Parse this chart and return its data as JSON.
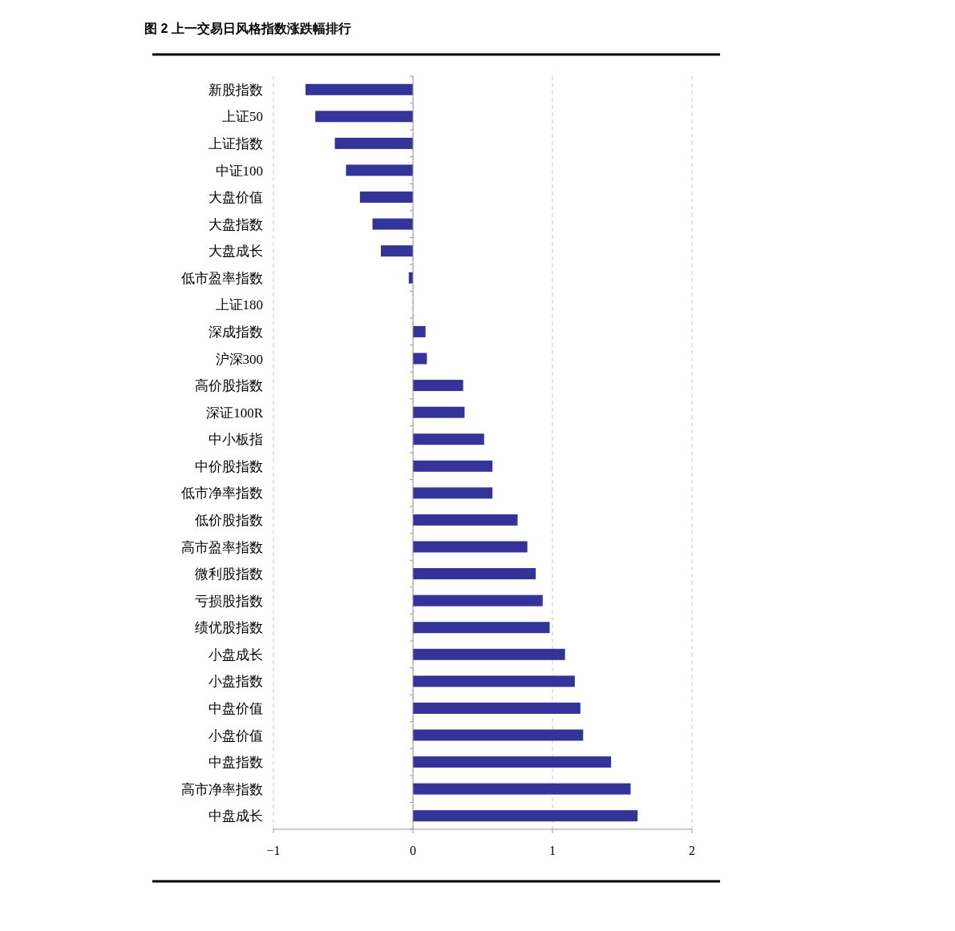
{
  "chart_data": {
    "type": "bar",
    "orientation": "horizontal",
    "title": "图 2 上一交易日风格指数涨跌幅排行",
    "categories": [
      "新股指数",
      "上证50",
      "上证指数",
      "中证100",
      "大盘价值",
      "大盘指数",
      "大盘成长",
      "低市盈率指数",
      "上证180",
      "深成指数",
      "沪深300",
      "高价股指数",
      "深证100R",
      "中小板指",
      "中价股指数",
      "低市净率指数",
      "低价股指数",
      "高市盈率指数",
      "微利股指数",
      "亏损股指数",
      "绩优股指数",
      "小盘成长",
      "小盘指数",
      "中盘价值",
      "小盘价值",
      "中盘指数",
      "高市净率指数",
      "中盘成长"
    ],
    "values": [
      -0.77,
      -0.7,
      -0.56,
      -0.48,
      -0.38,
      -0.29,
      -0.23,
      -0.03,
      0,
      0.09,
      0.1,
      0.36,
      0.37,
      0.51,
      0.57,
      0.57,
      0.75,
      0.82,
      0.88,
      0.93,
      0.98,
      1.09,
      1.16,
      1.2,
      1.22,
      1.42,
      1.56,
      1.61
    ],
    "color": "#333399",
    "xlim": [
      -1,
      2
    ],
    "xticks": [
      {
        "value": -1,
        "label": "−1"
      },
      0,
      1,
      2
    ],
    "grid": "x"
  }
}
